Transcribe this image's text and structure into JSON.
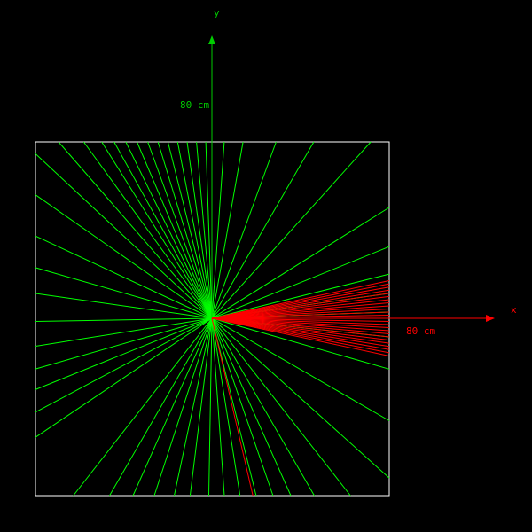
{
  "axes": {
    "x": {
      "name": "x",
      "scale_label": "80 cm",
      "color": "#ff0000"
    },
    "y": {
      "name": "y",
      "scale_label": "80 cm",
      "color": "#00cc00"
    }
  },
  "colors": {
    "background": "#000000",
    "frame": "#ffffff",
    "track_primary": "#00ff00",
    "track_secondary": "#ff0000"
  },
  "tracks": {
    "green_directions_deg": [
      92,
      95,
      98,
      101,
      104,
      107,
      110,
      113,
      116,
      119,
      122,
      126,
      131,
      137,
      145,
      155,
      164,
      172,
      181,
      189,
      196,
      202,
      208,
      214,
      232,
      240,
      246,
      252,
      258,
      263,
      269,
      274,
      279,
      284,
      289,
      294,
      300,
      308,
      318,
      330,
      344,
      354,
      2,
      8,
      14,
      22,
      32,
      48,
      60,
      70,
      80,
      86
    ],
    "red_directions_deg": [
      12,
      11,
      10,
      9,
      8,
      7,
      6,
      5,
      4,
      3,
      2,
      1,
      0,
      -1,
      -2,
      -3,
      -4,
      -5,
      -6,
      -7,
      -8,
      -9,
      -10,
      -11,
      -12,
      283
    ]
  }
}
